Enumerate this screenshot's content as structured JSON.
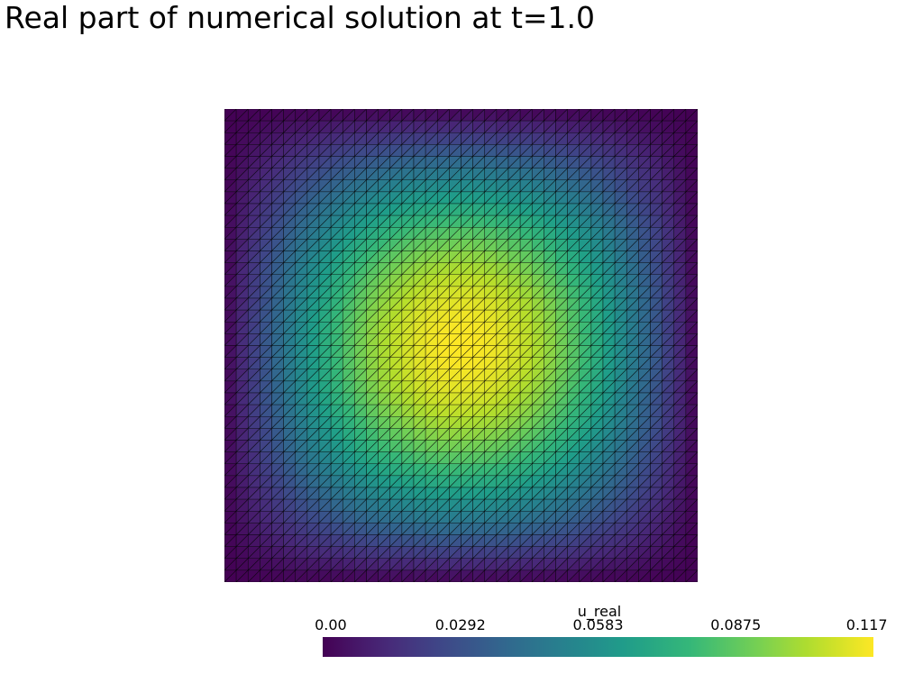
{
  "chart_data": {
    "type": "heatmap",
    "title": "Real part of numerical solution at t=1.0",
    "field_name": "u_real",
    "scalar_range": [
      0.0,
      0.117
    ],
    "colorbar_ticks": [
      "0.00",
      "0.0292",
      "0.0583",
      "0.0875",
      "0.117"
    ],
    "colormap": [
      "#440154",
      "#482878",
      "#3e4989",
      "#31688e",
      "#26828e",
      "#1f9e89",
      "#35b779",
      "#6ece58",
      "#b5de2b",
      "#fde725"
    ],
    "mesh": {
      "domain_x": [
        0,
        1
      ],
      "domain_y": [
        0,
        1
      ],
      "divisions": 40,
      "cell_shape": "triangle",
      "edge_color": "#000000"
    },
    "field": {
      "form": "A * sin(pi*x) * sin(pi*y)",
      "A": 0.117
    },
    "grid": false,
    "legend": "bottom-center"
  }
}
